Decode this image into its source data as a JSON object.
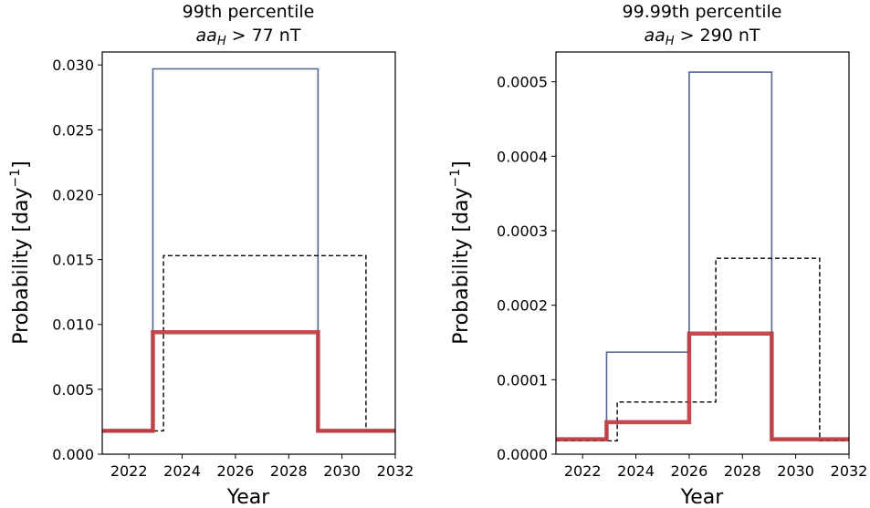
{
  "chart_data": [
    {
      "type": "line",
      "title_line1": "99th percentile",
      "title_var": "aa",
      "title_sub": "H",
      "title_rest": " > 77 nT",
      "xlabel": "Year",
      "ylabel": "Probability [day",
      "ylabel_sup": "−1",
      "ylabel_close": "]",
      "xlim": [
        2021,
        2032
      ],
      "ylim": [
        0,
        0.031
      ],
      "xticks": [
        2022,
        2024,
        2026,
        2028,
        2030,
        2032
      ],
      "yticks": [
        0.0,
        0.005,
        0.01,
        0.015,
        0.02,
        0.025,
        0.03
      ],
      "ytick_labels": [
        "0.000",
        "0.005",
        "0.010",
        "0.015",
        "0.020",
        "0.025",
        "0.030"
      ],
      "series": [
        {
          "style": "thin-blue",
          "color": "#4a5d8c",
          "x": [
            2021,
            2022.9,
            2022.9,
            2029.1,
            2029.1,
            2032
          ],
          "y": [
            0.0018,
            0.0018,
            0.0297,
            0.0297,
            0.0018,
            0.0018
          ]
        },
        {
          "style": "dashed-black",
          "color": "#000000",
          "x": [
            2021,
            2023.3,
            2023.3,
            2030.9,
            2030.9,
            2032
          ],
          "y": [
            0.0018,
            0.0018,
            0.0153,
            0.0153,
            0.0018,
            0.0018
          ]
        },
        {
          "style": "thick-red",
          "color": "#c0393f",
          "x": [
            2021,
            2022.9,
            2022.9,
            2029.1,
            2029.1,
            2032
          ],
          "y": [
            0.0018,
            0.0018,
            0.0094,
            0.0094,
            0.0018,
            0.0018
          ]
        }
      ]
    },
    {
      "type": "line",
      "title_line1": "99.99th percentile",
      "title_var": "aa",
      "title_sub": "H",
      "title_rest": " > 290 nT",
      "xlabel": "Year",
      "ylabel": "Probability [day",
      "ylabel_sup": "−1",
      "ylabel_close": "]",
      "xlim": [
        2021,
        2032
      ],
      "ylim": [
        0,
        0.00054
      ],
      "xticks": [
        2022,
        2024,
        2026,
        2028,
        2030,
        2032
      ],
      "yticks": [
        0.0,
        0.0001,
        0.0002,
        0.0003,
        0.0004,
        0.0005
      ],
      "ytick_labels": [
        "0.0000",
        "0.0001",
        "0.0002",
        "0.0003",
        "0.0004",
        "0.0005"
      ],
      "series": [
        {
          "style": "thin-blue",
          "color": "#4a5d8c",
          "x": [
            2021,
            2022.9,
            2022.9,
            2026.0,
            2026.0,
            2029.1,
            2029.1,
            2032
          ],
          "y": [
            2e-05,
            2e-05,
            0.000137,
            0.000137,
            0.000513,
            0.000513,
            2e-05,
            2e-05
          ]
        },
        {
          "style": "dashed-black",
          "color": "#000000",
          "x": [
            2021,
            2023.3,
            2023.3,
            2027.0,
            2027.0,
            2030.9,
            2030.9,
            2032
          ],
          "y": [
            1.8e-05,
            1.8e-05,
            7e-05,
            7e-05,
            0.000263,
            0.000263,
            1.8e-05,
            1.8e-05
          ]
        },
        {
          "style": "thick-red",
          "color": "#c0393f",
          "x": [
            2021,
            2022.9,
            2022.9,
            2026.0,
            2026.0,
            2029.1,
            2029.1,
            2032
          ],
          "y": [
            2e-05,
            2e-05,
            4.3e-05,
            4.3e-05,
            0.000162,
            0.000162,
            2e-05,
            2e-05
          ]
        }
      ]
    }
  ]
}
